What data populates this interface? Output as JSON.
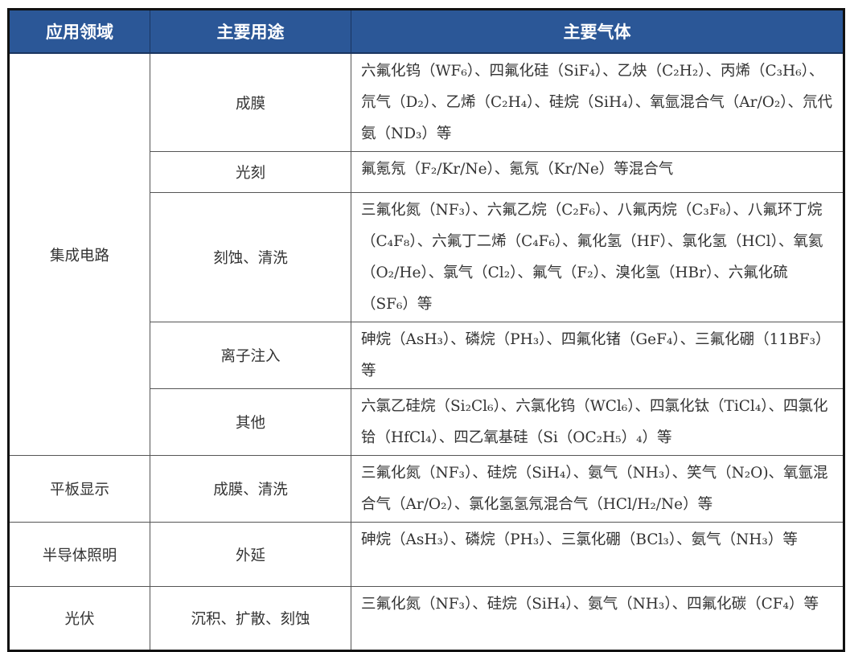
{
  "header": {
    "domain": "应用领域",
    "usage": "主要用途",
    "gases": "主要气体"
  },
  "colors": {
    "header_bg": "#2b5797",
    "header_text": "#ffffff",
    "border": "#111111"
  },
  "rows": [
    {
      "domain": "集成电路",
      "usage": "成膜",
      "gases": "六氟化钨（WF₆）、四氟化硅（SiF₄）、乙炔（C₂H₂）、丙烯（C₃H₆）、氘气（D₂）、乙烯（C₂H₄）、硅烷（SiH₄）、氧氩混合气（Ar/O₂）、氘代氨（ND₃）等"
    },
    {
      "usage": "光刻",
      "gases": "氟氪氖（F₂/Kr/Ne）、氪氖（Kr/Ne）等混合气"
    },
    {
      "usage": "刻蚀、清洗",
      "gases": "三氟化氮（NF₃）、六氟乙烷（C₂F₆）、八氟丙烷（C₃F₈）、八氟环丁烷（C₄F₈）、六氟丁二烯（C₄F₆）、氟化氢（HF）、氯化氢（HCl）、氧氦（O₂/He）、氯气（Cl₂）、氟气（F₂）、溴化氢（HBr）、六氟化硫（SF₆）等"
    },
    {
      "usage": "离子注入",
      "gases": "砷烷（AsH₃）、磷烷（PH₃）、四氟化锗（GeF₄）、三氟化硼（11BF₃）等"
    },
    {
      "usage": "其他",
      "gases": "六氯乙硅烷（Si₂Cl₆）、六氯化钨（WCl₆）、四氯化钛（TiCl₄）、四氯化铪（HfCl₄）、四乙氧基硅（Si（OC₂H₅）₄）等"
    },
    {
      "domain": "平板显示",
      "usage": "成膜、清洗",
      "gases": "三氟化氮（NF₃）、硅烷（SiH₄）、氨气（NH₃）、笑气（N₂O)、氧氩混合气（Ar/O₂）、氯化氢氢氖混合气（HCl/H₂/Ne）等"
    },
    {
      "domain": "半导体照明",
      "usage": "外延",
      "gases": "砷烷（AsH₃）、磷烷（PH₃）、三氯化硼（BCl₃）、氨气（NH₃）等"
    },
    {
      "domain": "光伏",
      "usage": "沉积、扩散、刻蚀",
      "gases": "三氟化氮（NF₃）、硅烷（SiH₄）、氨气（NH₃）、四氟化碳（CF₄）等"
    }
  ]
}
